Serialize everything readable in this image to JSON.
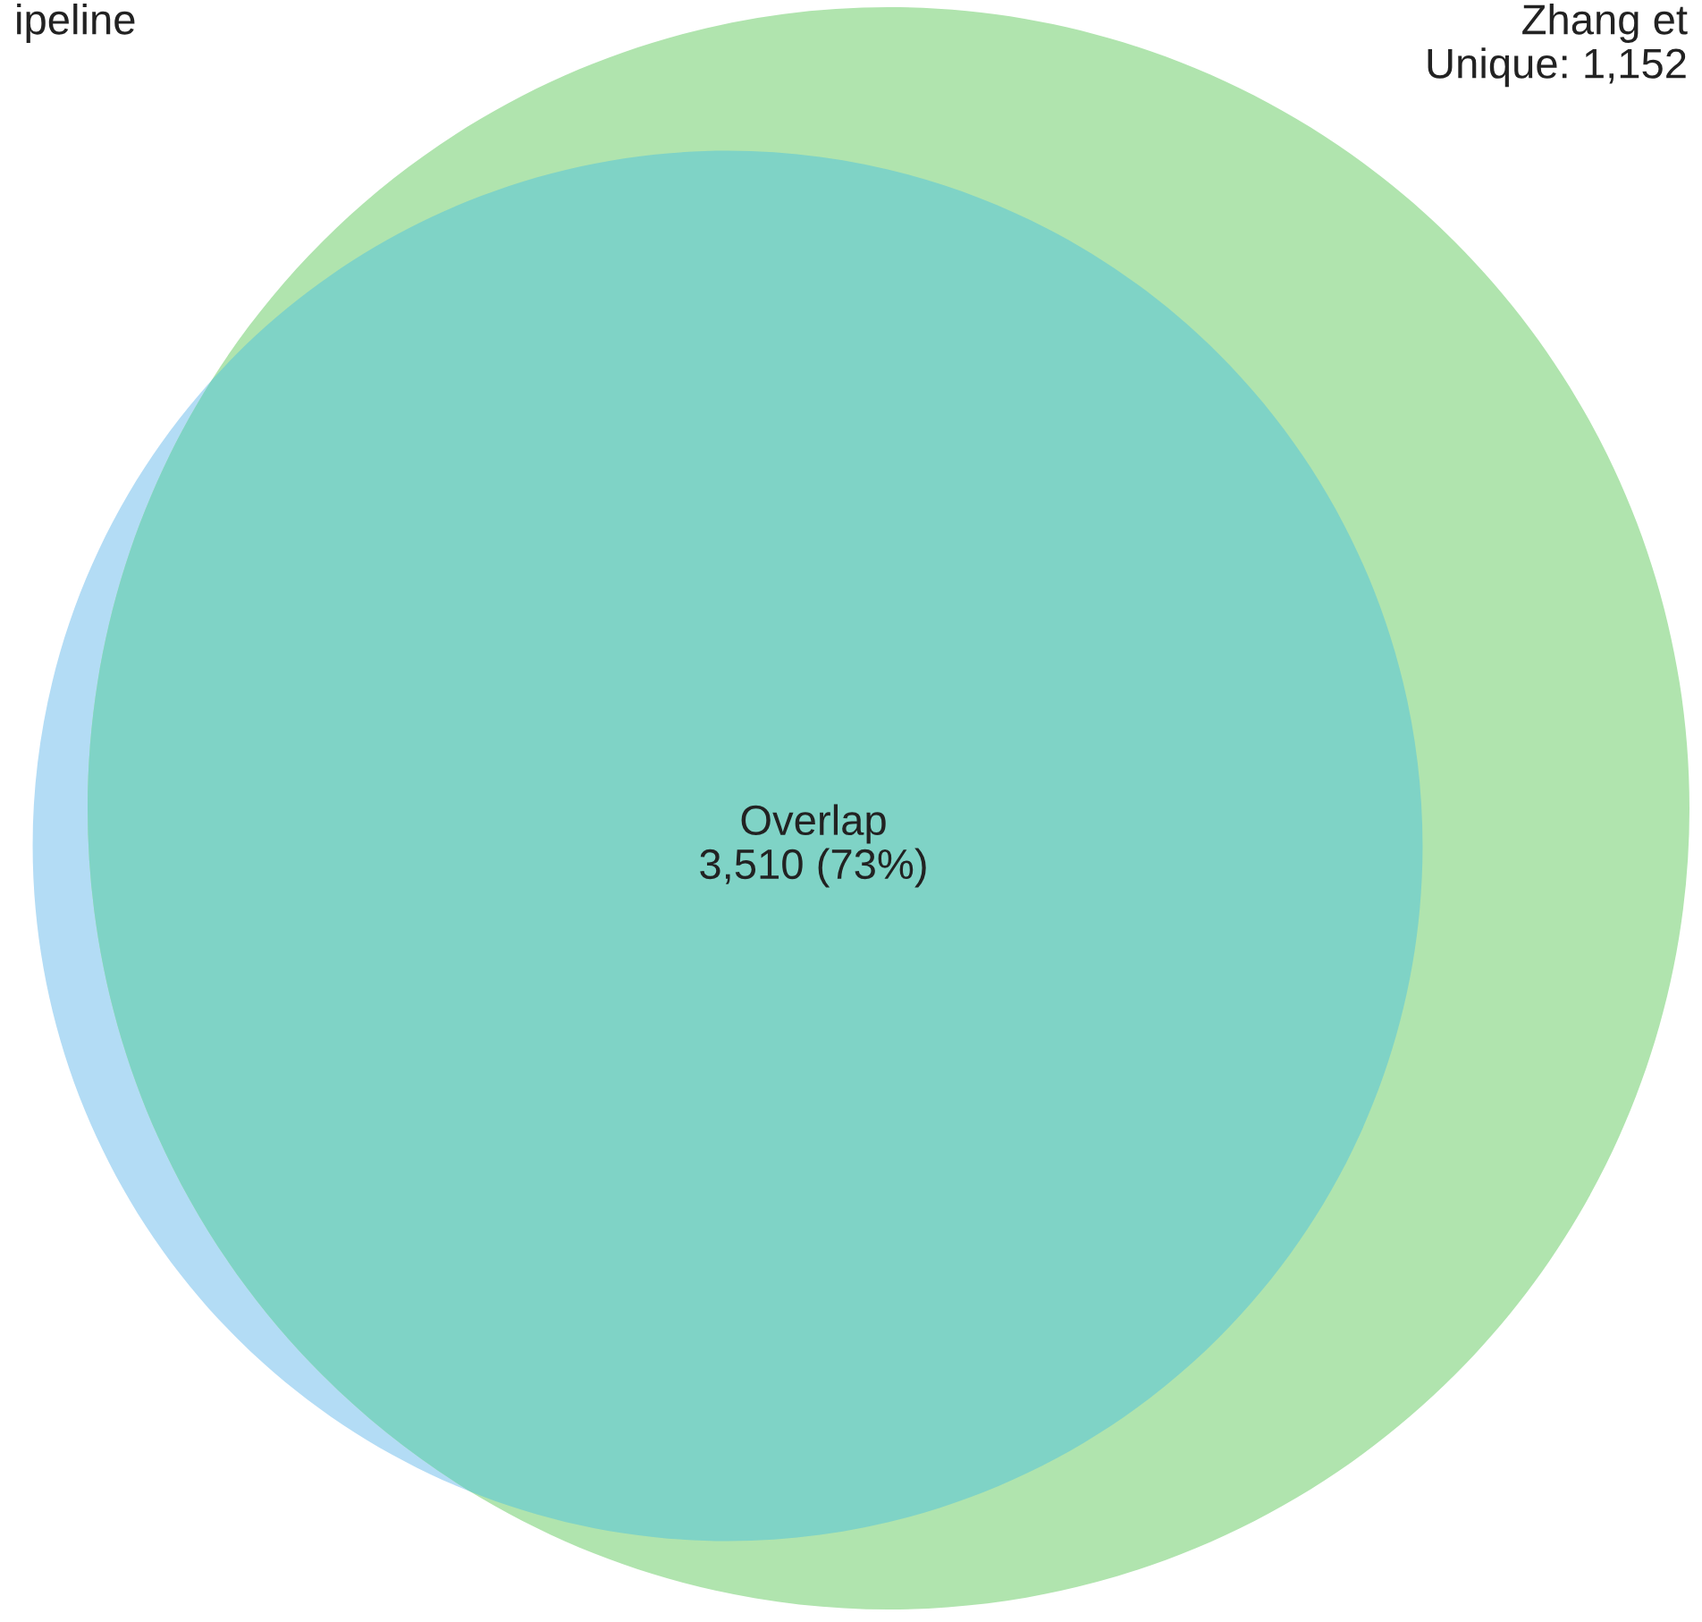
{
  "chart_data": {
    "type": "other",
    "categories": [
      "ipeline",
      "Zhang et",
      "Overlap"
    ],
    "values": [
      null,
      1152,
      3510
    ],
    "value_labels": [
      null,
      "Unique: 1,152",
      "3,510 (73%)"
    ],
    "colors": [
      "#b3dcf5",
      "#b0e4ae",
      "#7fd3c6"
    ]
  }
}
